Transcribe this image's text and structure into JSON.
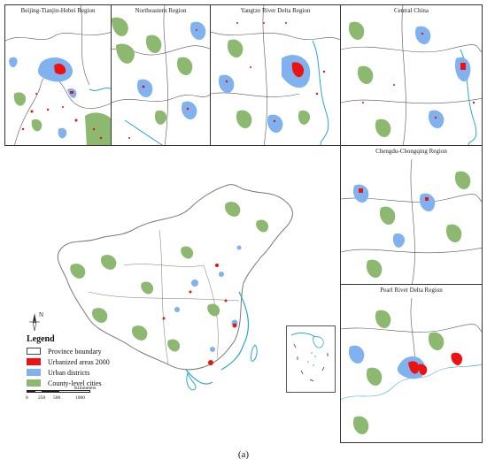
{
  "panels": {
    "beijing": "Beijing-Tianjin-Hebei Region",
    "northeastern": "Northeastern Region",
    "yangtze": "Yangtze River Delta Region",
    "central": "Central China",
    "chengdu": "Chengdu-Chongqing Region",
    "pearl": "Pearl River Delta Region"
  },
  "legend": {
    "title": "Legend",
    "items": [
      {
        "label": "Province boundary",
        "color": "#ffffff",
        "border": "#444444"
      },
      {
        "label": "Urbanized areas 2000",
        "color": "#ee1111",
        "border": "#ee1111"
      },
      {
        "label": "Urban districts",
        "color": "#7fb2ee",
        "border": "#7fb2ee"
      },
      {
        "label": "County-level cities",
        "color": "#8cb86f",
        "border": "#8cb86f"
      }
    ]
  },
  "scale": {
    "labels": [
      "0",
      "250",
      "500",
      "1000"
    ],
    "unit": "Kilometers"
  },
  "north_label": "N",
  "caption": "(a)",
  "colors": {
    "urbanized": "#ee1111",
    "urban_district": "#7fb2ee",
    "county_city": "#8cb86f",
    "coast": "#2aa7c9",
    "boundary": "#555555"
  }
}
